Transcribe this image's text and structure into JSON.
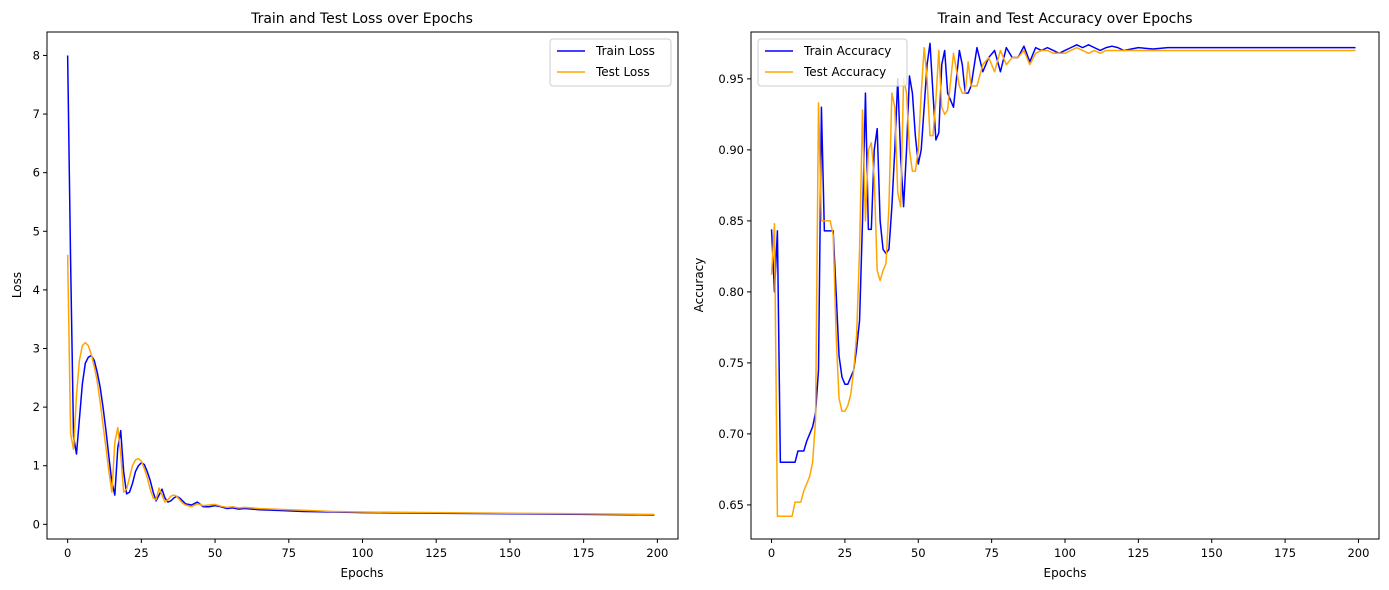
{
  "colors": {
    "train": "#0000ff",
    "test": "#ffa500"
  },
  "chart_data": [
    {
      "type": "line",
      "title": "Train and Test Loss over Epochs",
      "xlabel": "Epochs",
      "ylabel": "Loss",
      "xlim": [
        -7,
        207
      ],
      "ylim": [
        -0.25,
        8.4
      ],
      "xticks": [
        0,
        25,
        50,
        75,
        100,
        125,
        150,
        175,
        200
      ],
      "yticks": [
        0,
        1,
        2,
        3,
        4,
        5,
        6,
        7,
        8
      ],
      "legend": "top-right",
      "grid": false,
      "series": [
        {
          "name": "Train Loss",
          "x": [
            0,
            1,
            2,
            3,
            4,
            5,
            6,
            7,
            8,
            9,
            10,
            11,
            12,
            13,
            14,
            15,
            16,
            17,
            18,
            19,
            20,
            21,
            22,
            23,
            24,
            25,
            26,
            27,
            28,
            29,
            30,
            31,
            32,
            33,
            34,
            35,
            36,
            37,
            38,
            39,
            40,
            42,
            44,
            46,
            48,
            50,
            52,
            54,
            56,
            58,
            60,
            65,
            70,
            75,
            80,
            90,
            100,
            125,
            150,
            175,
            199
          ],
          "y": [
            8.0,
            4.5,
            1.5,
            1.2,
            1.8,
            2.4,
            2.75,
            2.85,
            2.88,
            2.8,
            2.6,
            2.35,
            2.0,
            1.6,
            1.15,
            0.72,
            0.5,
            1.3,
            1.6,
            0.9,
            0.52,
            0.55,
            0.7,
            0.9,
            1.0,
            1.05,
            1.02,
            0.9,
            0.75,
            0.55,
            0.4,
            0.5,
            0.6,
            0.45,
            0.38,
            0.4,
            0.45,
            0.48,
            0.45,
            0.4,
            0.35,
            0.33,
            0.38,
            0.3,
            0.3,
            0.32,
            0.3,
            0.27,
            0.28,
            0.26,
            0.27,
            0.25,
            0.24,
            0.23,
            0.22,
            0.21,
            0.2,
            0.19,
            0.18,
            0.17,
            0.16
          ]
        },
        {
          "name": "Test Loss",
          "x": [
            0,
            1,
            2,
            3,
            4,
            5,
            6,
            7,
            8,
            9,
            10,
            11,
            12,
            13,
            14,
            15,
            16,
            17,
            18,
            19,
            20,
            21,
            22,
            23,
            24,
            25,
            26,
            27,
            28,
            29,
            30,
            31,
            32,
            33,
            34,
            35,
            36,
            37,
            38,
            39,
            40,
            42,
            44,
            46,
            48,
            50,
            52,
            54,
            56,
            58,
            60,
            65,
            70,
            75,
            80,
            90,
            100,
            125,
            150,
            175,
            199
          ],
          "y": [
            4.6,
            1.55,
            1.28,
            2.2,
            2.8,
            3.05,
            3.1,
            3.05,
            2.9,
            2.7,
            2.45,
            2.1,
            1.7,
            1.3,
            0.9,
            0.55,
            1.4,
            1.65,
            1.2,
            0.55,
            0.6,
            0.8,
            1.0,
            1.1,
            1.12,
            1.08,
            0.95,
            0.8,
            0.6,
            0.45,
            0.42,
            0.62,
            0.5,
            0.38,
            0.42,
            0.48,
            0.5,
            0.48,
            0.42,
            0.36,
            0.33,
            0.3,
            0.35,
            0.32,
            0.33,
            0.34,
            0.31,
            0.29,
            0.3,
            0.28,
            0.29,
            0.27,
            0.26,
            0.25,
            0.24,
            0.22,
            0.21,
            0.2,
            0.19,
            0.18,
            0.17
          ]
        }
      ]
    },
    {
      "type": "line",
      "title": "Train and Test Accuracy over Epochs",
      "xlabel": "Epochs",
      "ylabel": "Accuracy",
      "xlim": [
        -7,
        207
      ],
      "ylim": [
        0.626,
        0.983
      ],
      "xticks": [
        0,
        25,
        50,
        75,
        100,
        125,
        150,
        175,
        200
      ],
      "yticks": [
        0.65,
        0.7,
        0.75,
        0.8,
        0.85,
        0.9,
        0.95
      ],
      "ytick_labels": [
        "0.65",
        "0.70",
        "0.75",
        "0.80",
        "0.85",
        "0.90",
        "0.95"
      ],
      "legend": "top-left",
      "grid": false,
      "series": [
        {
          "name": "Train Accuracy",
          "x": [
            0,
            1,
            2,
            3,
            4,
            5,
            6,
            7,
            8,
            9,
            10,
            11,
            12,
            13,
            14,
            15,
            16,
            17,
            18,
            19,
            20,
            21,
            22,
            23,
            24,
            25,
            26,
            27,
            28,
            29,
            30,
            31,
            32,
            33,
            34,
            35,
            36,
            37,
            38,
            39,
            40,
            41,
            42,
            43,
            44,
            45,
            46,
            47,
            48,
            49,
            50,
            51,
            52,
            53,
            54,
            55,
            56,
            57,
            58,
            59,
            60,
            62,
            64,
            65,
            66,
            67,
            68,
            70,
            72,
            74,
            76,
            78,
            80,
            82,
            84,
            86,
            88,
            90,
            92,
            94,
            96,
            98,
            100,
            102,
            104,
            106,
            108,
            110,
            112,
            114,
            116,
            118,
            120,
            125,
            130,
            135,
            150,
            175,
            199
          ],
          "y": [
            0.844,
            0.8,
            0.843,
            0.68,
            0.68,
            0.68,
            0.68,
            0.68,
            0.68,
            0.688,
            0.688,
            0.688,
            0.695,
            0.7,
            0.705,
            0.715,
            0.745,
            0.93,
            0.843,
            0.843,
            0.843,
            0.843,
            0.8,
            0.755,
            0.74,
            0.735,
            0.735,
            0.74,
            0.745,
            0.76,
            0.78,
            0.85,
            0.94,
            0.844,
            0.844,
            0.9,
            0.915,
            0.85,
            0.83,
            0.827,
            0.83,
            0.86,
            0.9,
            0.95,
            0.895,
            0.86,
            0.9,
            0.952,
            0.94,
            0.91,
            0.89,
            0.9,
            0.93,
            0.96,
            0.975,
            0.94,
            0.907,
            0.912,
            0.96,
            0.97,
            0.94,
            0.93,
            0.97,
            0.96,
            0.94,
            0.94,
            0.945,
            0.972,
            0.955,
            0.965,
            0.97,
            0.955,
            0.972,
            0.965,
            0.965,
            0.973,
            0.962,
            0.972,
            0.97,
            0.972,
            0.97,
            0.968,
            0.97,
            0.972,
            0.974,
            0.972,
            0.974,
            0.972,
            0.97,
            0.972,
            0.973,
            0.972,
            0.97,
            0.972,
            0.971,
            0.972,
            0.972,
            0.972,
            0.972
          ]
        },
        {
          "name": "Test Accuracy",
          "x": [
            0,
            1,
            2,
            3,
            4,
            5,
            6,
            7,
            8,
            9,
            10,
            11,
            12,
            13,
            14,
            15,
            16,
            17,
            18,
            19,
            20,
            21,
            22,
            23,
            24,
            25,
            26,
            27,
            28,
            29,
            30,
            31,
            32,
            33,
            34,
            35,
            36,
            37,
            38,
            39,
            40,
            41,
            42,
            43,
            44,
            45,
            46,
            47,
            48,
            49,
            50,
            51,
            52,
            53,
            54,
            55,
            56,
            57,
            58,
            59,
            60,
            62,
            64,
            65,
            66,
            67,
            68,
            70,
            72,
            74,
            76,
            78,
            80,
            82,
            84,
            86,
            88,
            90,
            92,
            94,
            96,
            98,
            100,
            102,
            104,
            106,
            108,
            110,
            112,
            114,
            116,
            118,
            120,
            125,
            130,
            135,
            150,
            175,
            199
          ],
          "y": [
            0.812,
            0.848,
            0.642,
            0.642,
            0.642,
            0.642,
            0.642,
            0.642,
            0.652,
            0.652,
            0.652,
            0.66,
            0.665,
            0.67,
            0.68,
            0.71,
            0.933,
            0.85,
            0.85,
            0.85,
            0.85,
            0.84,
            0.77,
            0.725,
            0.716,
            0.716,
            0.72,
            0.728,
            0.745,
            0.77,
            0.83,
            0.928,
            0.85,
            0.9,
            0.905,
            0.88,
            0.815,
            0.808,
            0.815,
            0.82,
            0.86,
            0.94,
            0.93,
            0.87,
            0.86,
            0.95,
            0.94,
            0.9,
            0.885,
            0.885,
            0.9,
            0.94,
            0.972,
            0.95,
            0.91,
            0.91,
            0.935,
            0.97,
            0.93,
            0.925,
            0.928,
            0.968,
            0.945,
            0.94,
            0.94,
            0.962,
            0.945,
            0.945,
            0.96,
            0.965,
            0.955,
            0.97,
            0.96,
            0.965,
            0.965,
            0.97,
            0.96,
            0.968,
            0.97,
            0.97,
            0.968,
            0.968,
            0.968,
            0.97,
            0.972,
            0.97,
            0.968,
            0.97,
            0.968,
            0.97,
            0.97,
            0.97,
            0.97,
            0.97,
            0.97,
            0.97,
            0.97,
            0.97,
            0.97
          ]
        }
      ]
    }
  ]
}
